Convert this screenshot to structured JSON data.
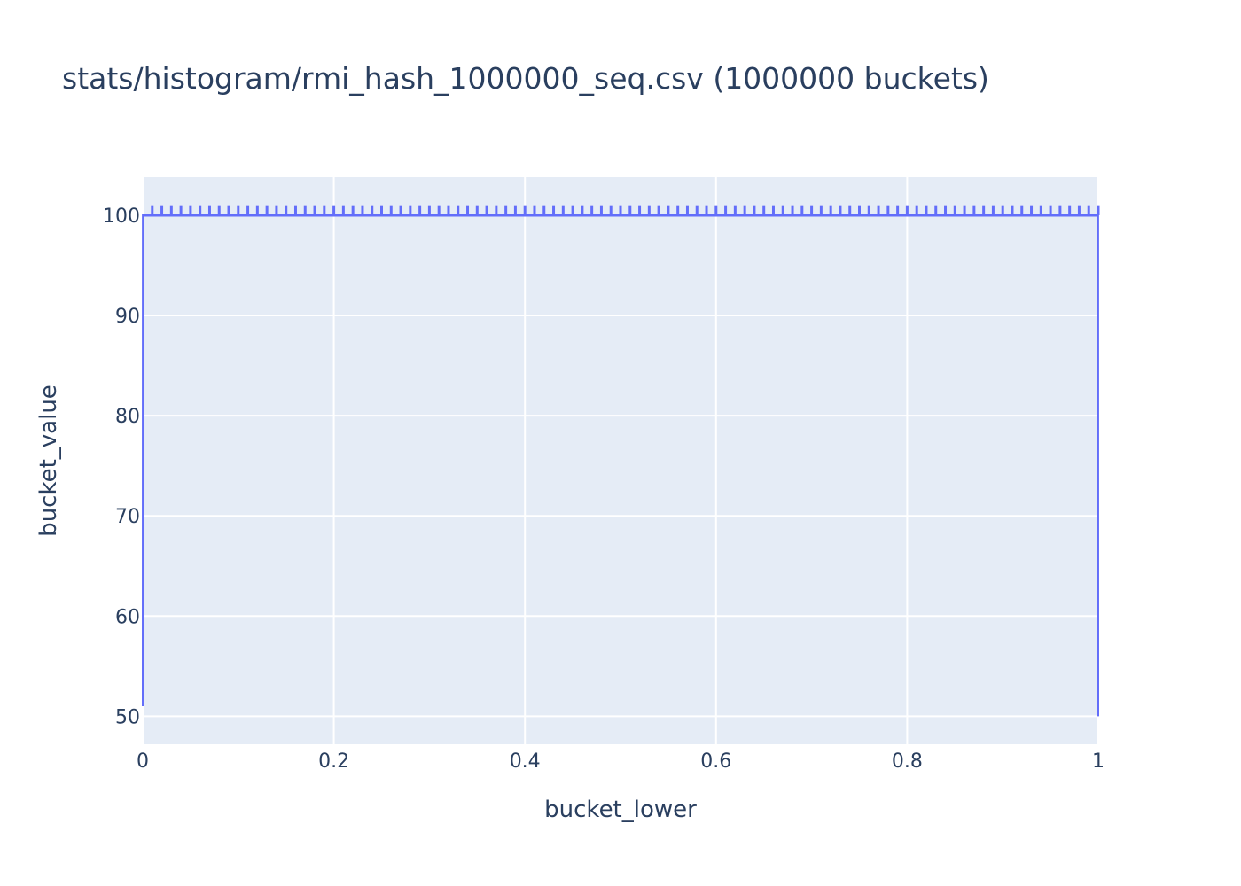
{
  "chart_data": {
    "type": "line",
    "title": "stats/histogram/rmi_hash_1000000_seq.csv (1000000 buckets)",
    "xlabel": "bucket_lower",
    "ylabel": "bucket_value",
    "xlim": [
      0,
      1
    ],
    "ylim": [
      47.2,
      103.8
    ],
    "x_ticks": [
      0,
      0.2,
      0.4,
      0.6,
      0.8,
      1
    ],
    "x_tick_labels": [
      "0",
      "0.2",
      "0.4",
      "0.6",
      "0.8",
      "1"
    ],
    "y_ticks": [
      50,
      60,
      70,
      80,
      90,
      100
    ],
    "y_tick_labels": [
      "50",
      "60",
      "70",
      "80",
      "90",
      "100"
    ],
    "grid": true,
    "legend": false,
    "series": [
      {
        "values_description_free": true,
        "x": [
          0,
          0.0001,
          0.9999,
          1
        ],
        "y": [
          51,
          100,
          100,
          50
        ],
        "spike_value": 101,
        "spike_count": 100,
        "spike_start": 0.01,
        "spike_step": 0.01
      }
    ],
    "colors": {
      "line": "#636efa",
      "plot_bg": "#e5ecf6",
      "grid": "#ffffff",
      "text": "#2a3f5f"
    }
  }
}
